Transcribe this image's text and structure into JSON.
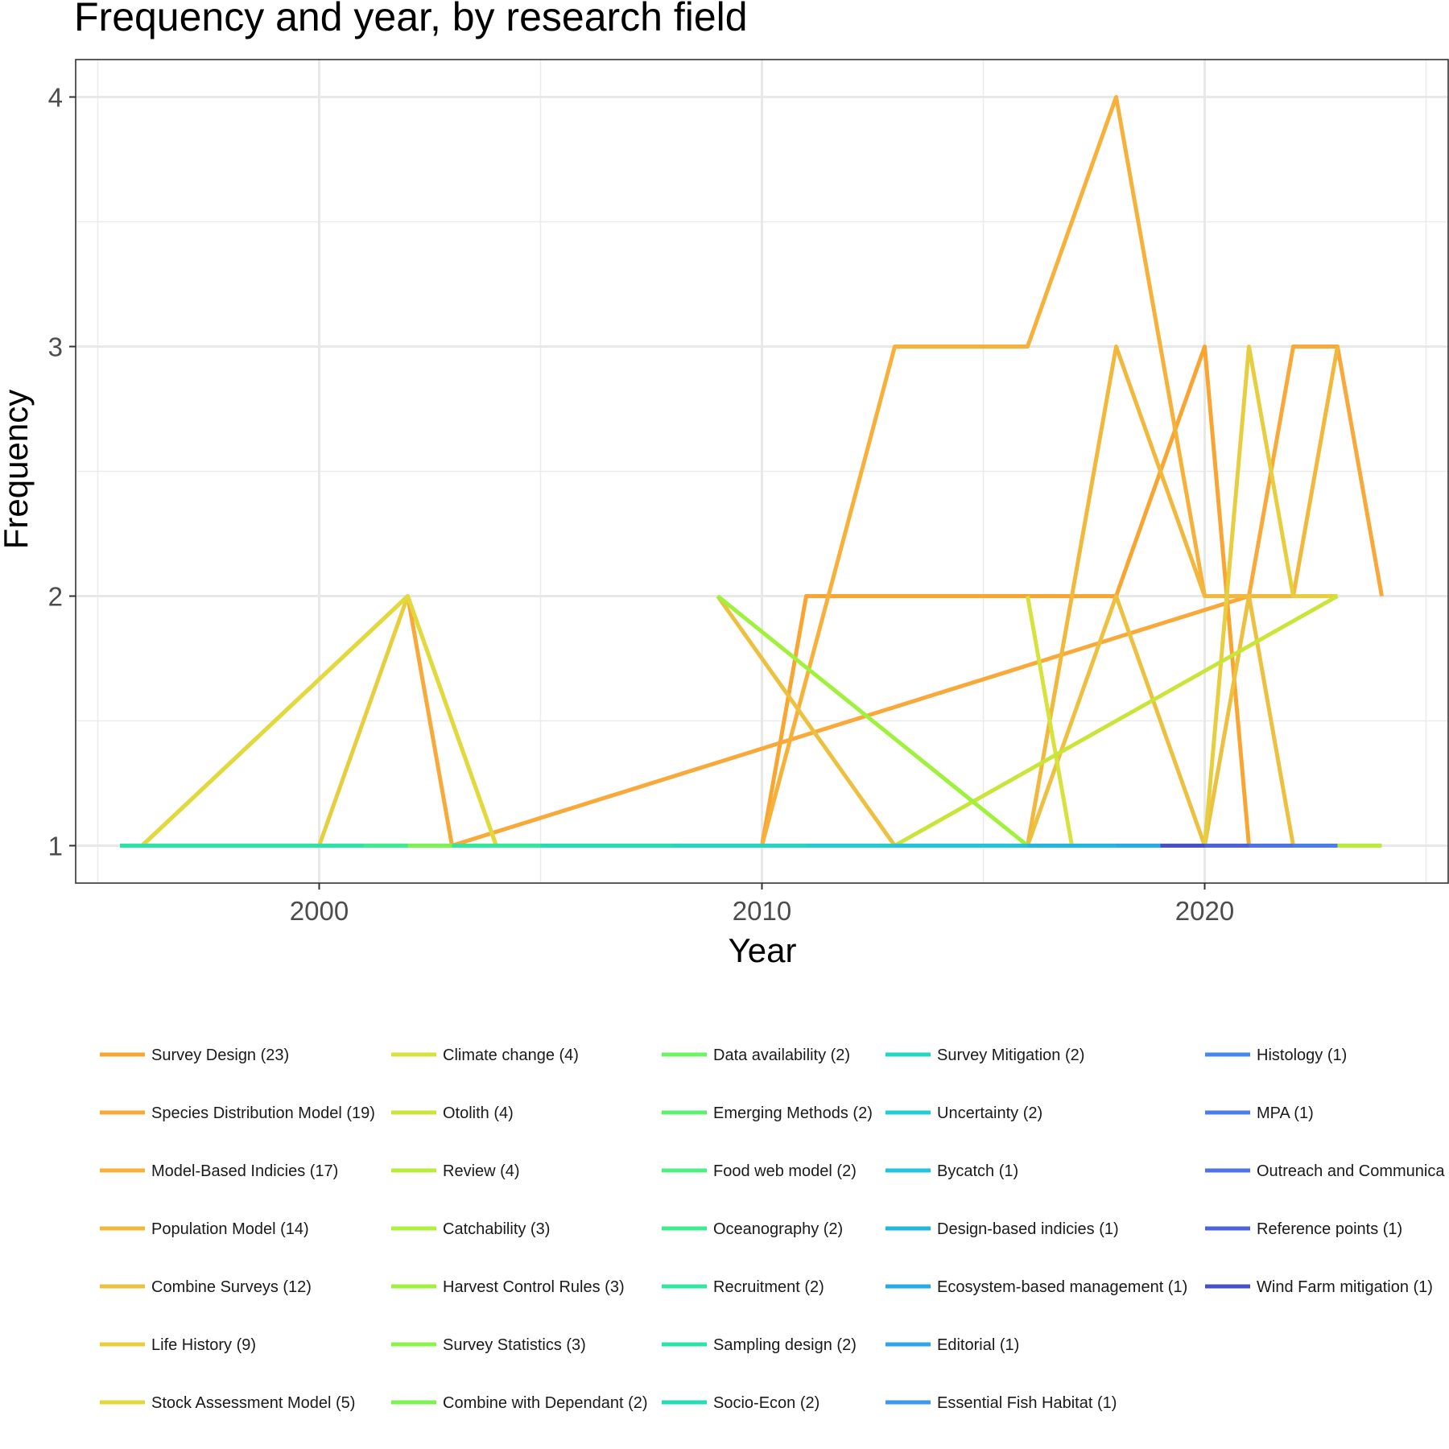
{
  "chart_data": {
    "type": "line",
    "title": "Frequency and year, by research field",
    "xlabel": "Year",
    "ylabel": "Frequency",
    "xlim": [
      1994.5,
      2025.5
    ],
    "ylim": [
      0.85,
      4.15
    ],
    "x_ticks": [
      2000,
      2010,
      2020
    ],
    "x_tick_labels": [
      "2000",
      "2010",
      "2020"
    ],
    "y_ticks": [
      1,
      2,
      3,
      4
    ],
    "y_tick_labels": [
      "1",
      "2",
      "3",
      "4"
    ],
    "grid": true,
    "legend_position": "bottom",
    "series": [
      {
        "name": "Survey Design (23)",
        "color": "#F9A531",
        "x": [
          2010,
          2011,
          2018,
          2020,
          2021
        ],
        "y": [
          1,
          2,
          2,
          3,
          1
        ]
      },
      {
        "name": "Species Distribution Model (19)",
        "color": "#F9A83A",
        "x": [
          1996,
          2002,
          2003,
          2021,
          2022,
          2023,
          2024
        ],
        "y": [
          1,
          2,
          1,
          2,
          3,
          3,
          2
        ]
      },
      {
        "name": "Model-Based Indicies (17)",
        "color": "#F7B13A",
        "x": [
          2010,
          2013,
          2016,
          2018,
          2020,
          2023
        ],
        "y": [
          1,
          3,
          3,
          4,
          2,
          2
        ]
      },
      {
        "name": "Population Model (14)",
        "color": "#F2B83C",
        "x": [
          2016,
          2018,
          2020,
          2021,
          2022,
          2023
        ],
        "y": [
          1,
          3,
          2,
          2,
          2,
          3
        ]
      },
      {
        "name": "Combine Surveys (12)",
        "color": "#EEC03F",
        "x": [
          2009,
          2013,
          2016,
          2018,
          2020,
          2021,
          2022
        ],
        "y": [
          2,
          1,
          1,
          2,
          1,
          2,
          1
        ]
      },
      {
        "name": "Life History (9)",
        "color": "#E7CE3F",
        "x": [
          2000,
          2002,
          2004,
          2020,
          2021,
          2022,
          2023
        ],
        "y": [
          1,
          2,
          1,
          1,
          3,
          2,
          2
        ]
      },
      {
        "name": "Stock Assessment Model (5)",
        "color": "#E2D93D",
        "x": [
          1996,
          2002,
          2004
        ],
        "y": [
          1,
          2,
          1
        ]
      },
      {
        "name": "Climate change (4)",
        "color": "#D7E23D",
        "x": [
          2016,
          2017,
          2020
        ],
        "y": [
          2,
          1,
          1
        ]
      },
      {
        "name": "Otolith (4)",
        "color": "#C9E53A",
        "x": [
          2013,
          2023
        ],
        "y": [
          1,
          2
        ]
      },
      {
        "name": "Review (4)",
        "color": "#B8EC37",
        "x": [
          2018,
          2023,
          2024
        ],
        "y": [
          1,
          1,
          1
        ]
      },
      {
        "name": "Catchability (3)",
        "color": "#AEF03C",
        "x": [
          2016,
          2020
        ],
        "y": [
          1,
          1
        ]
      },
      {
        "name": "Harvest Control Rules (3)",
        "color": "#9FF23B",
        "x": [
          2009,
          2016
        ],
        "y": [
          2,
          1
        ]
      },
      {
        "name": "Survey Statistics (3)",
        "color": "#8CF34A",
        "x": [
          2004,
          2012
        ],
        "y": [
          1,
          1
        ]
      },
      {
        "name": "Combine with Dependant (2)",
        "color": "#7BF452",
        "x": [
          2001,
          2004
        ],
        "y": [
          1,
          1
        ]
      },
      {
        "name": "Data availability (2)",
        "color": "#6CF362",
        "x": [
          2010,
          2014
        ],
        "y": [
          1,
          1
        ]
      },
      {
        "name": "Emerging Methods (2)",
        "color": "#5CF26F",
        "x": [
          2015,
          2019
        ],
        "y": [
          1,
          1
        ]
      },
      {
        "name": "Food web model (2)",
        "color": "#4DF07F",
        "x": [
          2012,
          2017
        ],
        "y": [
          1,
          1
        ]
      },
      {
        "name": "Oceanography (2)",
        "color": "#3DEC8E",
        "x": [
          1997,
          2002
        ],
        "y": [
          1,
          1
        ]
      },
      {
        "name": "Recruitment (2)",
        "color": "#30E89B",
        "x": [
          2003,
          2008
        ],
        "y": [
          1,
          1
        ]
      },
      {
        "name": "Sampling design (2)",
        "color": "#29E3A8",
        "x": [
          1995.5,
          2001
        ],
        "y": [
          1,
          1
        ]
      },
      {
        "name": "Socio-Econ (2)",
        "color": "#25DDB4",
        "x": [
          2005,
          2008
        ],
        "y": [
          1,
          1
        ]
      },
      {
        "name": "Survey Mitigation (2)",
        "color": "#22D6C2",
        "x": [
          2008,
          2011
        ],
        "y": [
          1,
          1
        ]
      },
      {
        "name": "Uncertainty (2)",
        "color": "#22CCD3",
        "x": [
          2011,
          2015
        ],
        "y": [
          1,
          1
        ]
      },
      {
        "name": "Bycatch (1)",
        "color": "#22C3DD",
        "x": [
          2013,
          2017
        ],
        "y": [
          1,
          1
        ]
      },
      {
        "name": "Design-based indicies (1)",
        "color": "#22B7E0",
        "x": [
          2016,
          2020
        ],
        "y": [
          1,
          1
        ]
      },
      {
        "name": "Ecosystem-based management (1)",
        "color": "#22ADE8",
        "x": [
          2018,
          2021
        ],
        "y": [
          1,
          1
        ]
      },
      {
        "name": "Editorial (1)",
        "color": "#2FA4EC",
        "x": [
          2020,
          2022
        ],
        "y": [
          1,
          1
        ]
      },
      {
        "name": "Essential Fish Habitat (1)",
        "color": "#3C98EE",
        "x": [
          2021,
          2023
        ],
        "y": [
          1,
          1
        ]
      },
      {
        "name": "Histology (1)",
        "color": "#448AEE",
        "x": [
          2022,
          2023
        ],
        "y": [
          1,
          1
        ]
      },
      {
        "name": "MPA (1)",
        "color": "#4B7EEC",
        "x": [
          2022,
          2023
        ],
        "y": [
          1,
          1
        ]
      },
      {
        "name": "Outreach and Communica",
        "color": "#4E72E8",
        "x": [
          2021,
          2022
        ],
        "y": [
          1,
          1
        ]
      },
      {
        "name": "Reference points (1)",
        "color": "#4A63DC",
        "x": [
          2020,
          2021
        ],
        "y": [
          1,
          1
        ]
      },
      {
        "name": "Wind Farm mitigation (1)",
        "color": "#4650C8",
        "x": [
          2019,
          2020
        ],
        "y": [
          1,
          1
        ]
      }
    ]
  }
}
